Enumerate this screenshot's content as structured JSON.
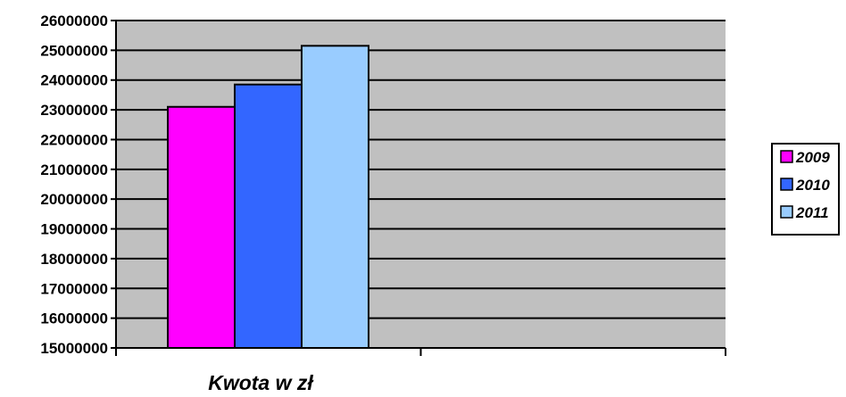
{
  "chart_data": {
    "type": "bar",
    "categories": [
      "Kwota w zł"
    ],
    "series": [
      {
        "name": "2009",
        "values": [
          23100000
        ],
        "color": "#ff00ff"
      },
      {
        "name": "2010",
        "values": [
          23850000
        ],
        "color": "#3366ff"
      },
      {
        "name": "2011",
        "values": [
          25150000
        ],
        "color": "#99ccff"
      }
    ],
    "xlabel": "Kwota w zł",
    "ylabel": "",
    "title": "",
    "ylim": [
      15000000,
      26000000
    ],
    "yticks": [
      15000000,
      16000000,
      17000000,
      18000000,
      19000000,
      20000000,
      21000000,
      22000000,
      23000000,
      24000000,
      25000000,
      26000000
    ],
    "ytick_labels": [
      "15000000",
      "16000000",
      "17000000",
      "18000000",
      "19000000",
      "20000000",
      "21000000",
      "22000000",
      "23000000",
      "24000000",
      "25000000",
      "26000000"
    ],
    "grid": true,
    "plot_background": "#c0c0c0",
    "legend_position": "right"
  }
}
